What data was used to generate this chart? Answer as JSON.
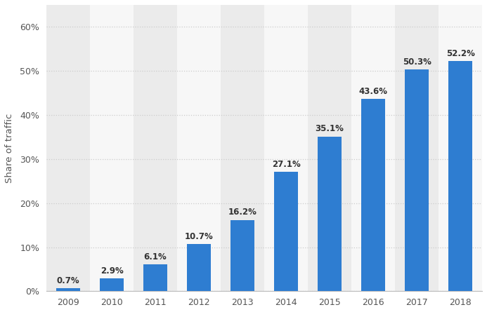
{
  "years": [
    "2009",
    "2010",
    "2011",
    "2012",
    "2013",
    "2014",
    "2015",
    "2016",
    "2017",
    "2018"
  ],
  "values": [
    0.7,
    2.9,
    6.1,
    10.7,
    16.2,
    27.1,
    35.1,
    43.6,
    50.3,
    52.2
  ],
  "labels": [
    "0.7%",
    "2.9%",
    "6.1%",
    "10.7%",
    "16.2%",
    "27.1%",
    "35.1%",
    "43.6%",
    "50.3%",
    "52.2%"
  ],
  "bar_color": "#2e7dd1",
  "background_color": "#ffffff",
  "plot_bg_color": "#ffffff",
  "stripe_color_odd": "#ebebeb",
  "stripe_color_even": "#f7f7f7",
  "ylabel": "Share of traffic",
  "yticks": [
    0,
    10,
    20,
    30,
    40,
    50,
    60
  ],
  "ylim": [
    0,
    65
  ],
  "grid_color": "#cccccc",
  "label_fontsize": 8.5,
  "tick_fontsize": 9,
  "ylabel_fontsize": 9.5
}
